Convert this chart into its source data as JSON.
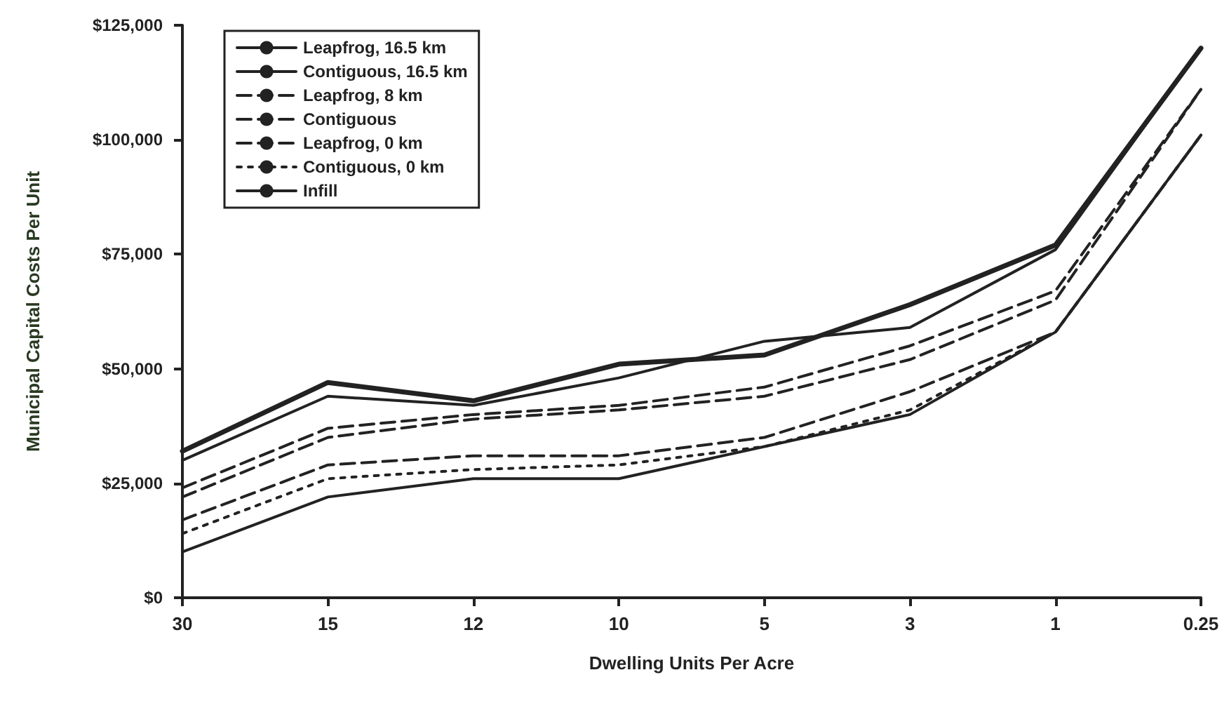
{
  "chart_data": {
    "type": "line",
    "xlabel": "Dwelling Units Per Acre",
    "ylabel": "Municipal Capital Costs Per Unit",
    "categories": [
      "30",
      "15",
      "12",
      "10",
      "5",
      "3",
      "1",
      "0.25"
    ],
    "series": [
      {
        "name": "Leapfrog, 16.5 km",
        "color": "#222222",
        "line_style": "solid",
        "values": [
          32000,
          47000,
          43000,
          51000,
          53000,
          64000,
          77000,
          120000
        ]
      },
      {
        "name": "Contiguous, 16.5 km",
        "color": "#222222",
        "line_style": "solid",
        "values": [
          30000,
          44000,
          42000,
          48000,
          56000,
          59000,
          76000,
          120000
        ]
      },
      {
        "name": "Leapfrog, 8 km",
        "color": "#222222",
        "line_style": "dashed",
        "values": [
          24000,
          37000,
          40000,
          42000,
          46000,
          55000,
          67000,
          111000
        ]
      },
      {
        "name": "Contiguous",
        "color": "#222222",
        "line_style": "dashed",
        "values": [
          22000,
          35000,
          39000,
          41000,
          44000,
          52000,
          65000,
          111000
        ]
      },
      {
        "name": "Leapfrog, 0 km",
        "color": "#222222",
        "line_style": "dashed",
        "values": [
          17000,
          29000,
          31000,
          31000,
          35000,
          45000,
          58000,
          101000
        ]
      },
      {
        "name": "Contiguous, 0 km",
        "color": "#222222",
        "line_style": "dotted",
        "values": [
          14000,
          26000,
          28000,
          29000,
          33000,
          41000,
          58000,
          101000
        ]
      },
      {
        "name": "Infill",
        "color": "#222222",
        "line_style": "solid",
        "values": [
          10000,
          22000,
          26000,
          26000,
          33000,
          40000,
          58000,
          101000
        ]
      }
    ],
    "ylim": [
      0,
      125000
    ],
    "yticks": [
      {
        "value": 0,
        "label": "$0"
      },
      {
        "value": 25000,
        "label": "$25,000"
      },
      {
        "value": 50000,
        "label": "$50,000"
      },
      {
        "value": 75000,
        "label": "$75,000"
      },
      {
        "value": 100000,
        "label": "$100,000"
      },
      {
        "value": 125000,
        "label": "$125,000"
      }
    ],
    "grid": false,
    "legend": "top left",
    "marker": "none"
  }
}
